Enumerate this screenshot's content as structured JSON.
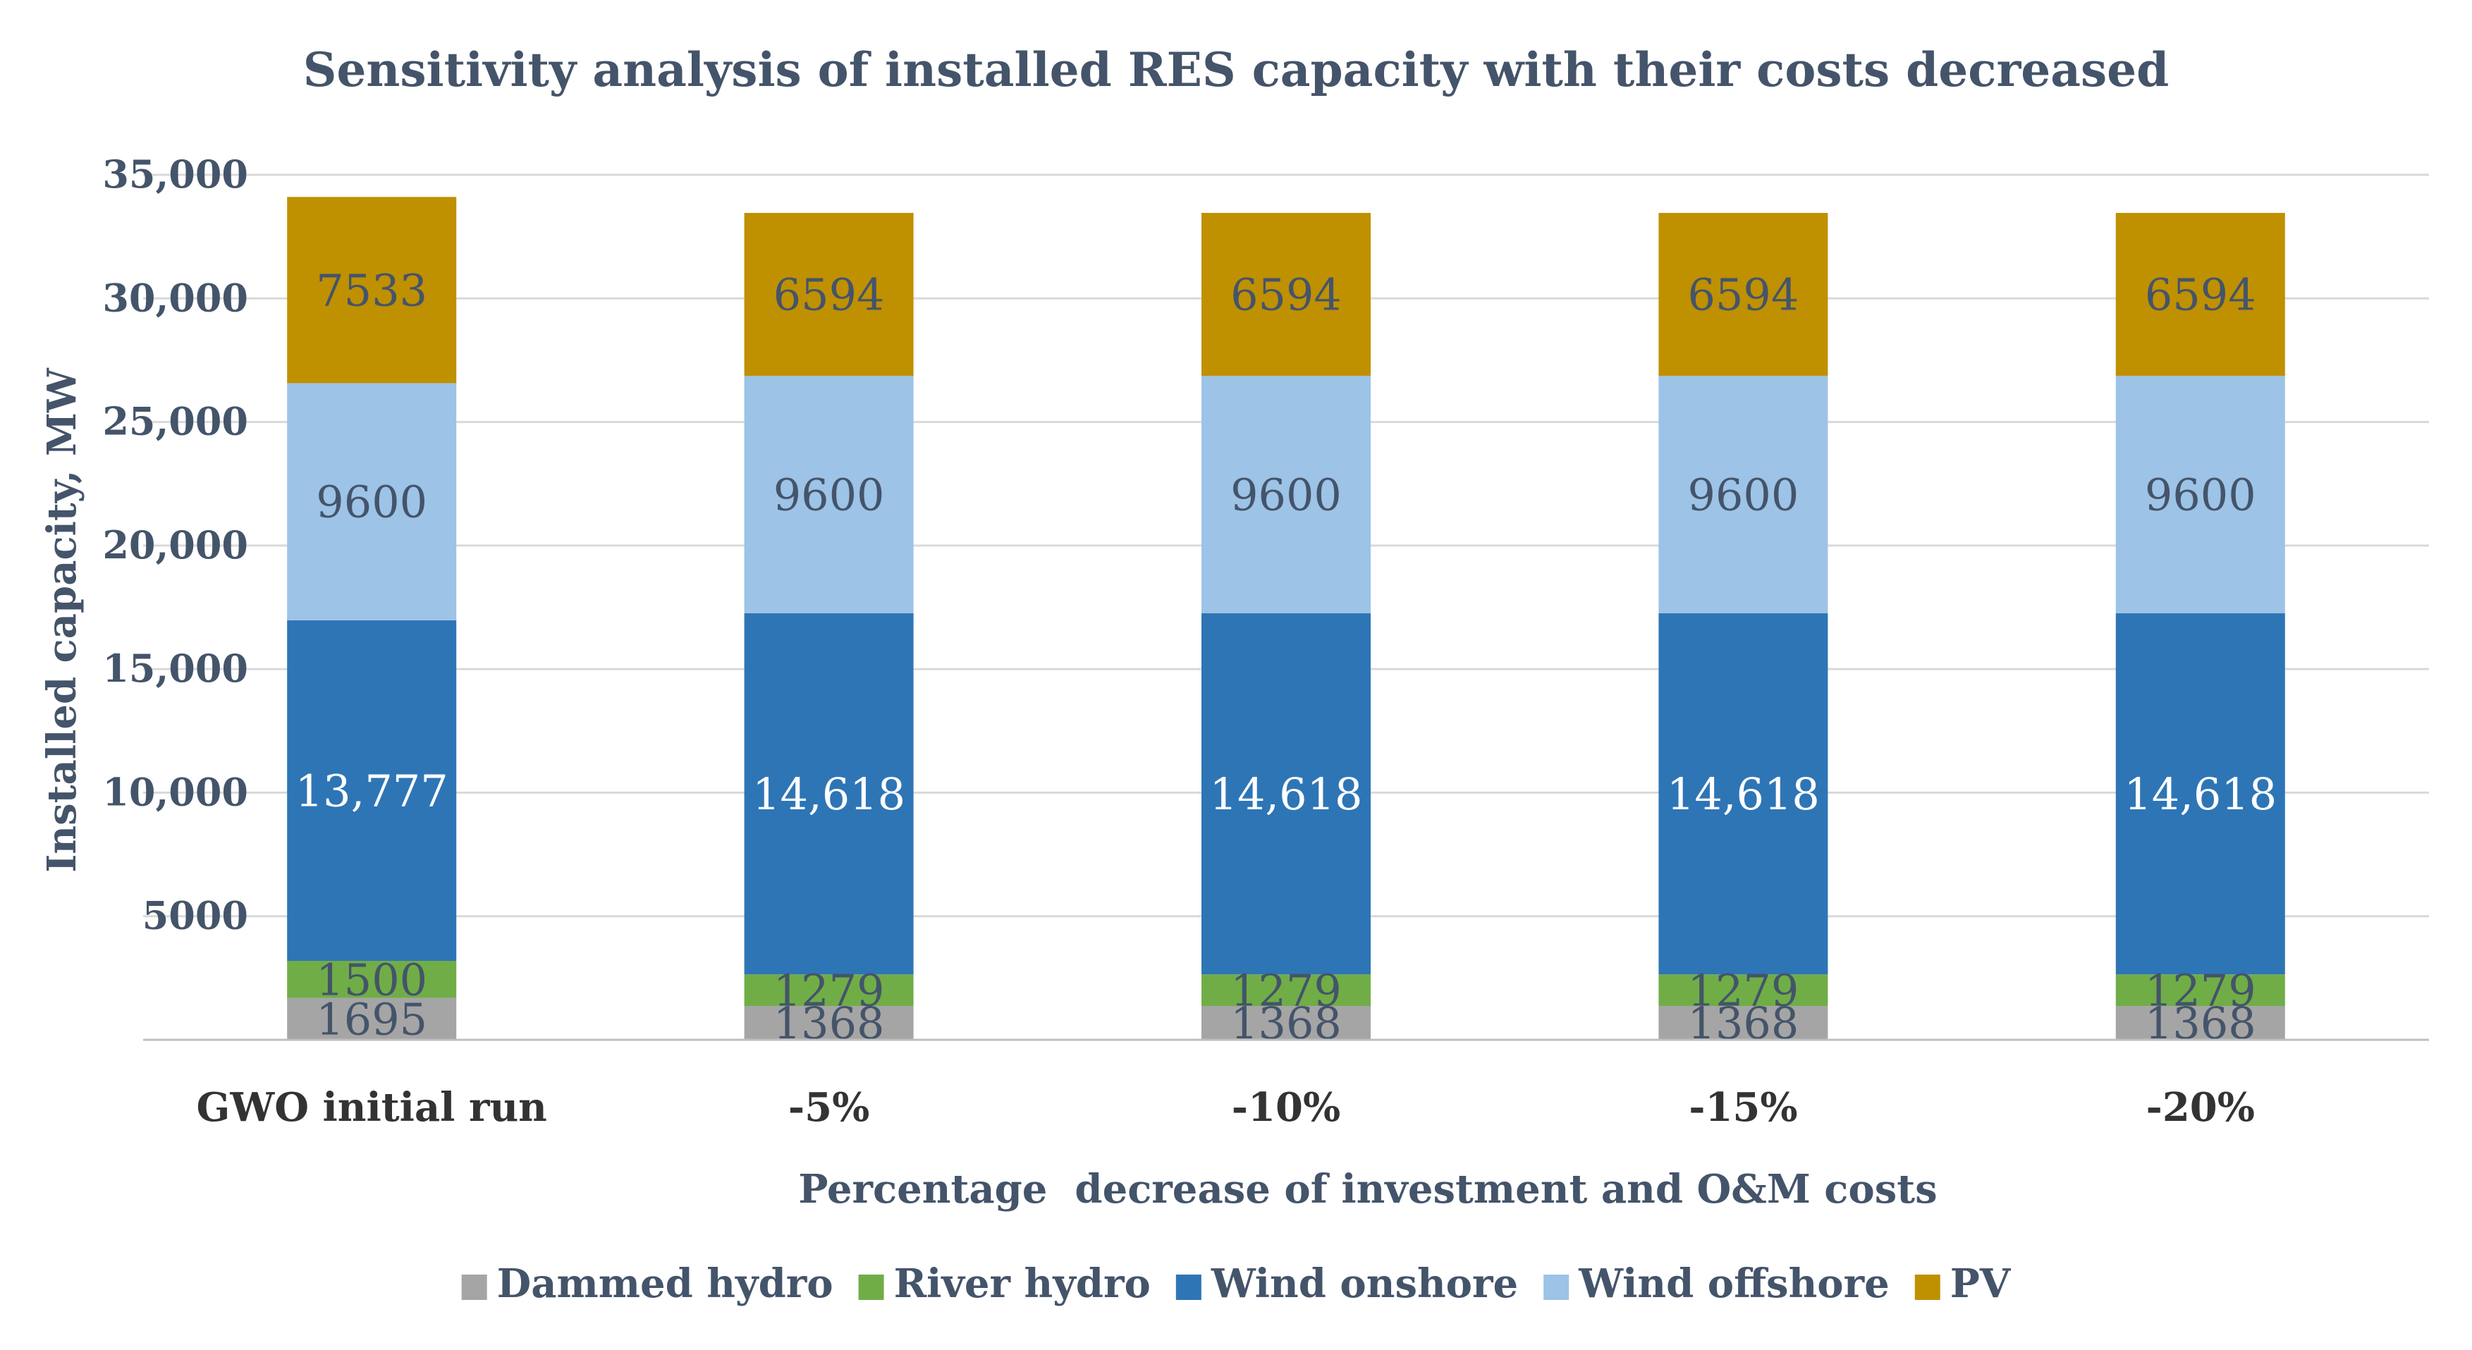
{
  "chart_data": {
    "type": "bar",
    "stacked": true,
    "title": "Sensitivity analysis of installed RES capacity with their costs decreased",
    "xlabel": "Percentage  decrease of investment and O&M costs",
    "ylabel": "Installed capacity, MW",
    "ylim": [
      0,
      35000
    ],
    "yticks": [
      5000,
      10000,
      15000,
      20000,
      25000,
      30000,
      35000
    ],
    "ytick_labels": [
      "5000",
      "10,000",
      "15,000",
      "20,000",
      "25,000",
      "30,000",
      "35,000"
    ],
    "categories": [
      "GWO initial run",
      "-5%",
      "-10%",
      "-15%",
      "-20%"
    ],
    "grid": true,
    "legend_position": "bottom",
    "series": [
      {
        "name": "Dammed hydro",
        "color": "#a5a5a5",
        "label_color": "#44546a",
        "values": [
          1695,
          1368,
          1368,
          1368,
          1368
        ],
        "labels": [
          "1695",
          "1368",
          "1368",
          "1368",
          "1368"
        ]
      },
      {
        "name": "River hydro",
        "color": "#70ad47",
        "label_color": "#44546a",
        "values": [
          1500,
          1279,
          1279,
          1279,
          1279
        ],
        "labels": [
          "1500",
          "1279",
          "1279",
          "1279",
          "1279"
        ]
      },
      {
        "name": "Wind onshore",
        "color": "#2e75b6",
        "label_color": "#ffffff",
        "values": [
          13777,
          14618,
          14618,
          14618,
          14618
        ],
        "labels": [
          "13,777",
          "14,618",
          "14,618",
          "14,618",
          "14,618"
        ]
      },
      {
        "name": "Wind offshore",
        "color": "#9dc3e6",
        "label_color": "#44546a",
        "values": [
          9600,
          9600,
          9600,
          9600,
          9600
        ],
        "labels": [
          "9600",
          "9600",
          "9600",
          "9600",
          "9600"
        ]
      },
      {
        "name": "PV",
        "color": "#bf9000",
        "label_color": "#44546a",
        "values": [
          7533,
          6594,
          6594,
          6594,
          6594
        ],
        "labels": [
          "7533",
          "6594",
          "6594",
          "6594",
          "6594"
        ]
      }
    ]
  }
}
